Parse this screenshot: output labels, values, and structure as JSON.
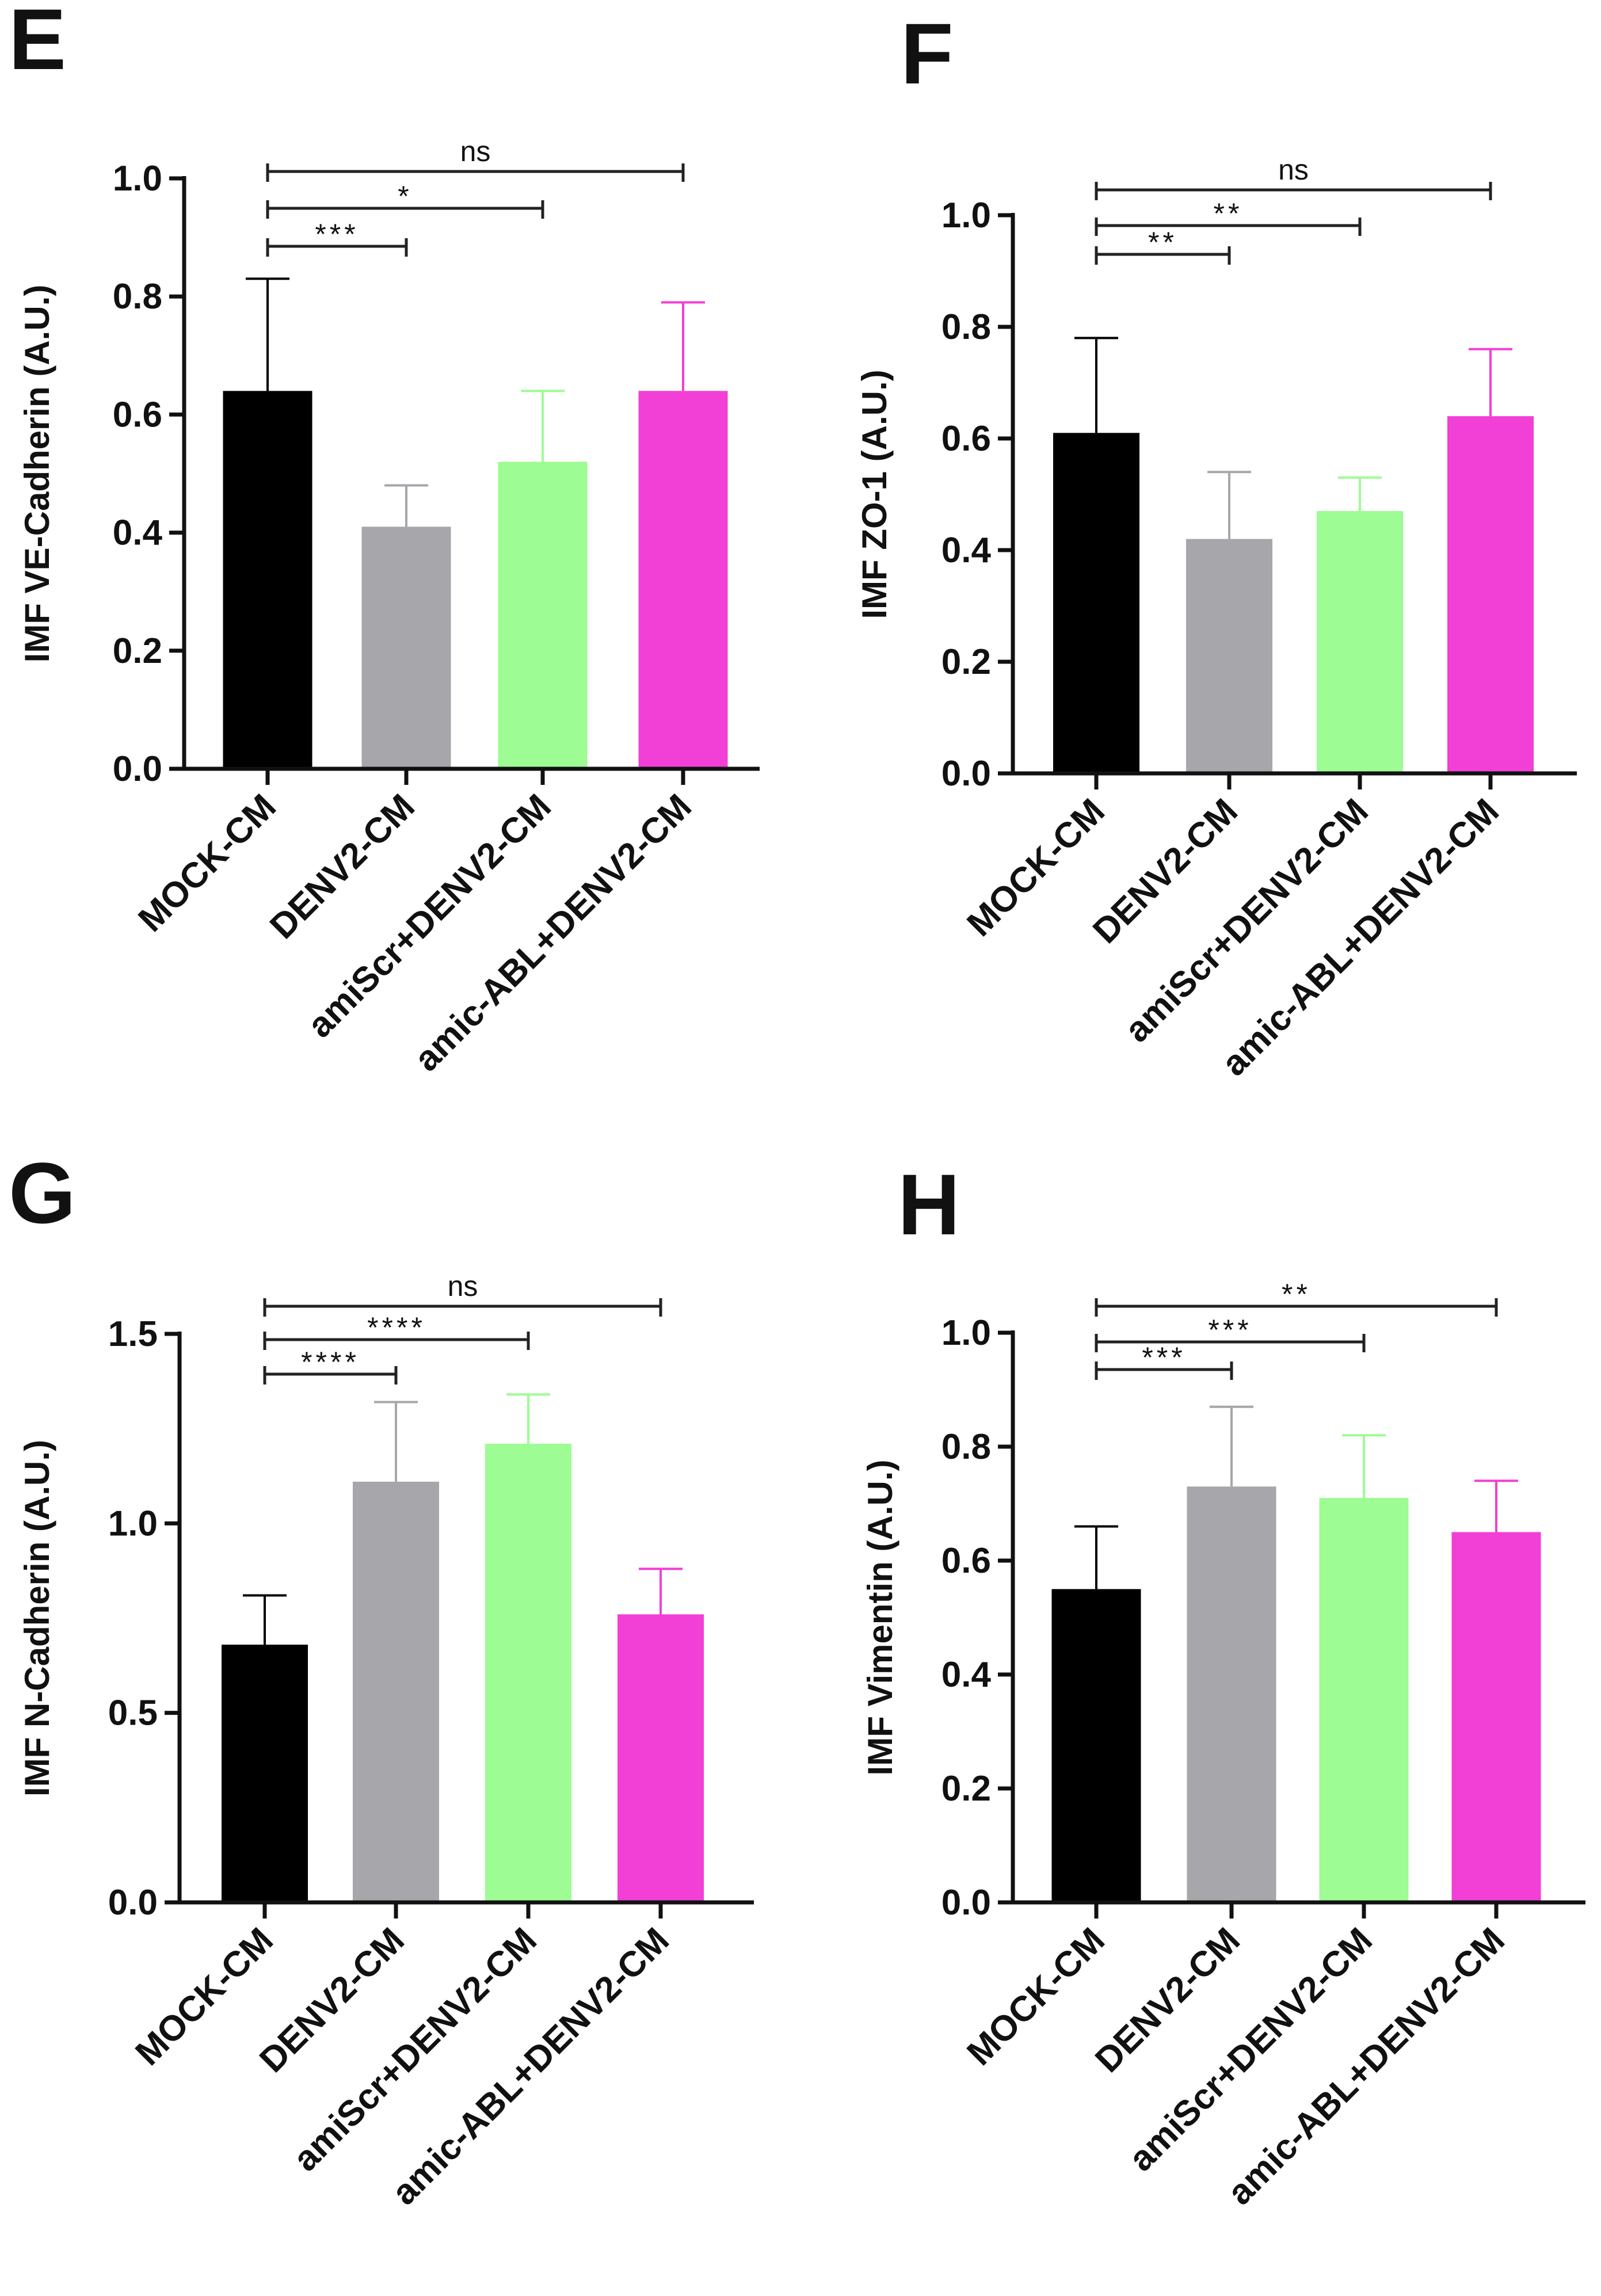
{
  "chart_data": [
    {
      "panel": "E",
      "type": "bar",
      "ylabel": "IMF VE-Cadherin (A.U.)",
      "ylim": [
        0,
        1.0
      ],
      "yticks": [
        "0.0",
        "0.2",
        "0.4",
        "0.6",
        "0.8",
        "1.0"
      ],
      "categories": [
        "MOCK-CM",
        "DENV2-CM",
        "amiScr+DENV2-CM",
        "amic-ABL+DENV2-CM"
      ],
      "values": [
        0.64,
        0.41,
        0.52,
        0.64
      ],
      "errors": [
        0.19,
        0.07,
        0.12,
        0.15
      ],
      "colors": [
        "#000000",
        "#a6a6ab",
        "#9dfc93",
        "#f23fd5"
      ],
      "comparisons": [
        {
          "from": 0,
          "to": 1,
          "label": "***"
        },
        {
          "from": 0,
          "to": 2,
          "label": "*"
        },
        {
          "from": 0,
          "to": 3,
          "label": "ns"
        }
      ]
    },
    {
      "panel": "F",
      "type": "bar",
      "ylabel": "IMF ZO-1 (A.U.)",
      "ylim": [
        0,
        1.0
      ],
      "yticks": [
        "0.0",
        "0.2",
        "0.4",
        "0.6",
        "0.8",
        "1.0"
      ],
      "categories": [
        "MOCK-CM",
        "DENV2-CM",
        "amiScr+DENV2-CM",
        "amic-ABL+DENV2-CM"
      ],
      "values": [
        0.61,
        0.42,
        0.47,
        0.64
      ],
      "errors": [
        0.17,
        0.12,
        0.06,
        0.12
      ],
      "colors": [
        "#000000",
        "#a6a6ab",
        "#9dfc93",
        "#f23fd5"
      ],
      "comparisons": [
        {
          "from": 0,
          "to": 1,
          "label": "**"
        },
        {
          "from": 0,
          "to": 2,
          "label": "**"
        },
        {
          "from": 0,
          "to": 3,
          "label": "ns"
        }
      ]
    },
    {
      "panel": "G",
      "type": "bar",
      "ylabel": "IMF N-Cadherin (A.U.)",
      "ylim": [
        0,
        1.5
      ],
      "yticks": [
        "0.0",
        "0.5",
        "1.0",
        "1.5"
      ],
      "categories": [
        "MOCK-CM",
        "DENV2-CM",
        "amiScr+DENV2-CM",
        "amic-ABL+DENV2-CM"
      ],
      "values": [
        0.68,
        1.11,
        1.21,
        0.76
      ],
      "errors": [
        0.13,
        0.21,
        0.13,
        0.12
      ],
      "colors": [
        "#000000",
        "#a6a6ab",
        "#9dfc93",
        "#f23fd5"
      ],
      "comparisons": [
        {
          "from": 0,
          "to": 1,
          "label": "****"
        },
        {
          "from": 0,
          "to": 2,
          "label": "****"
        },
        {
          "from": 0,
          "to": 3,
          "label": "ns"
        }
      ]
    },
    {
      "panel": "H",
      "type": "bar",
      "ylabel": "IMF Vimentin (A.U.)",
      "ylim": [
        0,
        1.0
      ],
      "yticks": [
        "0.0",
        "0.2",
        "0.4",
        "0.6",
        "0.8",
        "1.0"
      ],
      "categories": [
        "MOCK-CM",
        "DENV2-CM",
        "amiScr+DENV2-CM",
        "amic-ABL+DENV2-CM"
      ],
      "values": [
        0.55,
        0.73,
        0.71,
        0.65
      ],
      "errors": [
        0.11,
        0.14,
        0.11,
        0.09
      ],
      "colors": [
        "#000000",
        "#a6a6ab",
        "#9dfc93",
        "#f23fd5"
      ],
      "comparisons": [
        {
          "from": 0,
          "to": 1,
          "label": "***"
        },
        {
          "from": 0,
          "to": 2,
          "label": "***"
        },
        {
          "from": 0,
          "to": 3,
          "label": "**"
        }
      ]
    }
  ]
}
